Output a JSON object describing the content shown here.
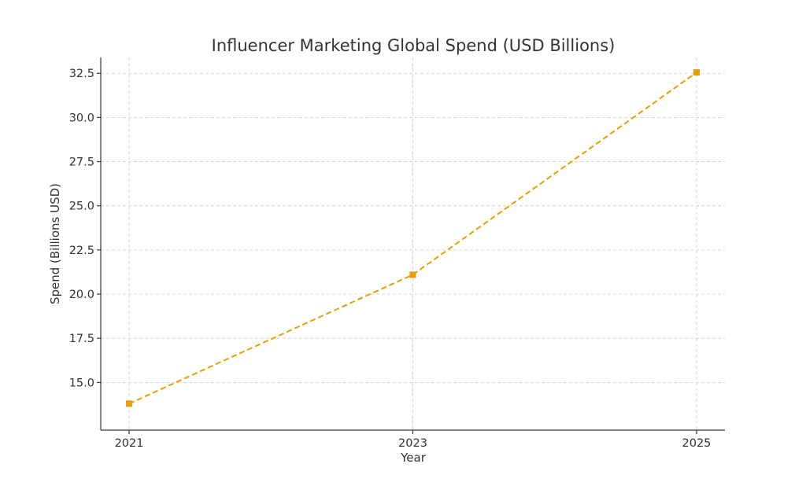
{
  "chart_data": {
    "type": "line",
    "title": "Influencer Marketing Global Spend (USD Billions)",
    "xlabel": "Year",
    "ylabel": "Spend (Billions USD)",
    "x": [
      "2021",
      "2023",
      "2025"
    ],
    "series": [
      {
        "values": [
          13.8,
          21.1,
          32.55
        ],
        "color": "#E69F00",
        "line_style": "dashed",
        "marker": "square"
      }
    ],
    "xlim": [
      2020.8,
      2025.2
    ],
    "ylim": [
      12.3,
      33.4
    ],
    "yticks": [
      15.0,
      17.5,
      20.0,
      22.5,
      25.0,
      27.5,
      30.0,
      32.5
    ],
    "ytick_labels": [
      "15.0",
      "17.5",
      "20.0",
      "22.5",
      "25.0",
      "27.5",
      "30.0",
      "32.5"
    ],
    "grid": true,
    "colors": {
      "text": "#333333",
      "grid": "#cccccc",
      "axis": "#333333"
    }
  }
}
